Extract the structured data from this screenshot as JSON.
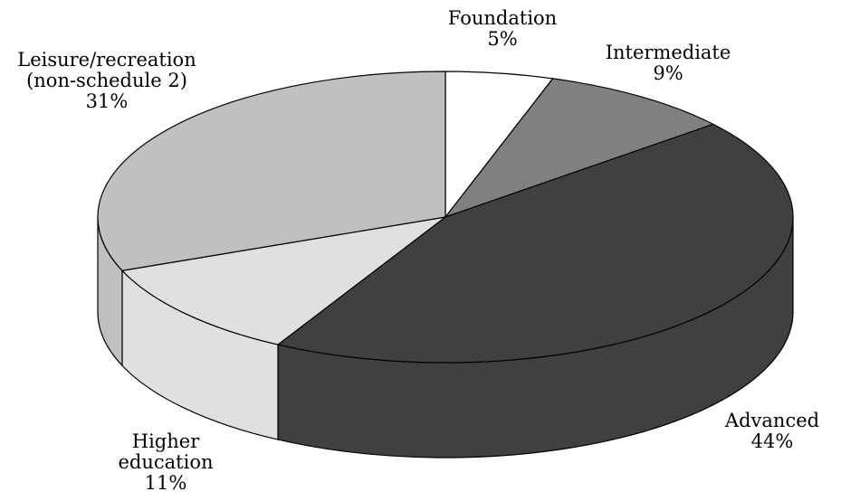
{
  "chart_data": {
    "type": "pie",
    "style": "3d",
    "title": "",
    "legend": "none",
    "slices": [
      {
        "label_lines": [
          "Foundation"
        ],
        "pct_label": "5%",
        "value": 5,
        "color": "#ffffff",
        "side_color": "#ffffff"
      },
      {
        "label_lines": [
          "Intermediate"
        ],
        "pct_label": "9%",
        "value": 9,
        "color": "#808080",
        "side_color": "#6a6a6a"
      },
      {
        "label_lines": [
          "Advanced"
        ],
        "pct_label": "44%",
        "value": 44,
        "color": "#404040",
        "side_color": "#404040"
      },
      {
        "label_lines": [
          "Higher",
          "education"
        ],
        "pct_label": "11%",
        "value": 11,
        "color": "#e0e0e0",
        "side_color": "#e0e0e0"
      },
      {
        "label_lines": [
          "Leisure/recreation",
          "(non-schedule 2)"
        ],
        "pct_label": "31%",
        "value": 31,
        "color": "#c0c0c0",
        "side_color": "#c0c0c0"
      }
    ]
  }
}
